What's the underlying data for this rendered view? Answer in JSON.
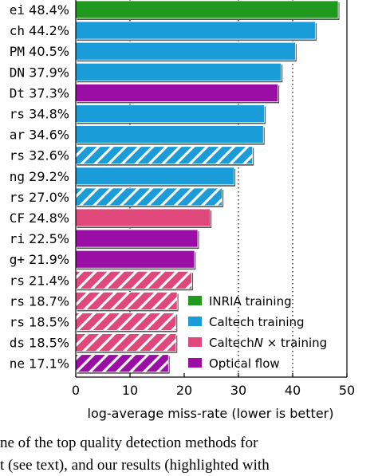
{
  "chart_data": {
    "type": "bar",
    "orientation": "horizontal",
    "xlabel": "log-average miss-rate (lower is better)",
    "xlim": [
      0,
      50
    ],
    "xticks": [
      0,
      10,
      20,
      30,
      40,
      50
    ],
    "dotted_gridlines": [
      10,
      30,
      40
    ],
    "legend_position": "bottom-right",
    "series": [
      {
        "name": "INRIA training",
        "color": "#1f9a1f",
        "style": "solid"
      },
      {
        "name": "Caltech training",
        "color": "#1a9cd8",
        "style": "solid"
      },
      {
        "name": "CaltechN × training",
        "color": "#e0477a",
        "style": "solid"
      },
      {
        "name": "Optical flow",
        "color": "#9b0ea6",
        "style": "solid"
      }
    ],
    "bars": [
      {
        "label": "ei",
        "value_text": "48.4%",
        "value": 48.4,
        "series": 0,
        "hatched": false
      },
      {
        "label": "ch",
        "value_text": "44.2%",
        "value": 44.2,
        "series": 1,
        "hatched": false
      },
      {
        "label": "PM",
        "value_text": "40.5%",
        "value": 40.5,
        "series": 1,
        "hatched": false
      },
      {
        "label": "DN",
        "value_text": "37.9%",
        "value": 37.9,
        "series": 1,
        "hatched": false
      },
      {
        "label": "Dt",
        "value_text": "37.3%",
        "value": 37.3,
        "series": 3,
        "hatched": false
      },
      {
        "label": "rs",
        "value_text": "34.8%",
        "value": 34.8,
        "series": 1,
        "hatched": false
      },
      {
        "label": "ar",
        "value_text": "34.6%",
        "value": 34.6,
        "series": 1,
        "hatched": false
      },
      {
        "label": "rs",
        "value_text": "32.6%",
        "value": 32.6,
        "series": 1,
        "hatched": true
      },
      {
        "label": "ng",
        "value_text": "29.2%",
        "value": 29.2,
        "series": 1,
        "hatched": false
      },
      {
        "label": "rs",
        "value_text": "27.0%",
        "value": 27.0,
        "series": 1,
        "hatched": true
      },
      {
        "label": "CF",
        "value_text": "24.8%",
        "value": 24.8,
        "series": 2,
        "hatched": false
      },
      {
        "label": "ri",
        "value_text": "22.5%",
        "value": 22.5,
        "series": 3,
        "hatched": false
      },
      {
        "label": "g+",
        "value_text": "21.9%",
        "value": 21.9,
        "series": 3,
        "hatched": false
      },
      {
        "label": "rs",
        "value_text": "21.4%",
        "value": 21.4,
        "series": 2,
        "hatched": true
      },
      {
        "label": "rs",
        "value_text": "18.7%",
        "value": 18.7,
        "series": 2,
        "hatched": true
      },
      {
        "label": "rs",
        "value_text": "18.5%",
        "value": 18.5,
        "series": 2,
        "hatched": true
      },
      {
        "label": "ds",
        "value_text": "18.5%",
        "value": 18.5,
        "series": 2,
        "hatched": true
      },
      {
        "label": "ne",
        "value_text": "17.1%",
        "value": 17.1,
        "series": 3,
        "hatched": true
      }
    ]
  },
  "caption": {
    "line1": "ne of the top quality detection methods for",
    "line2": "t (see text), and our results (highlighted with"
  }
}
